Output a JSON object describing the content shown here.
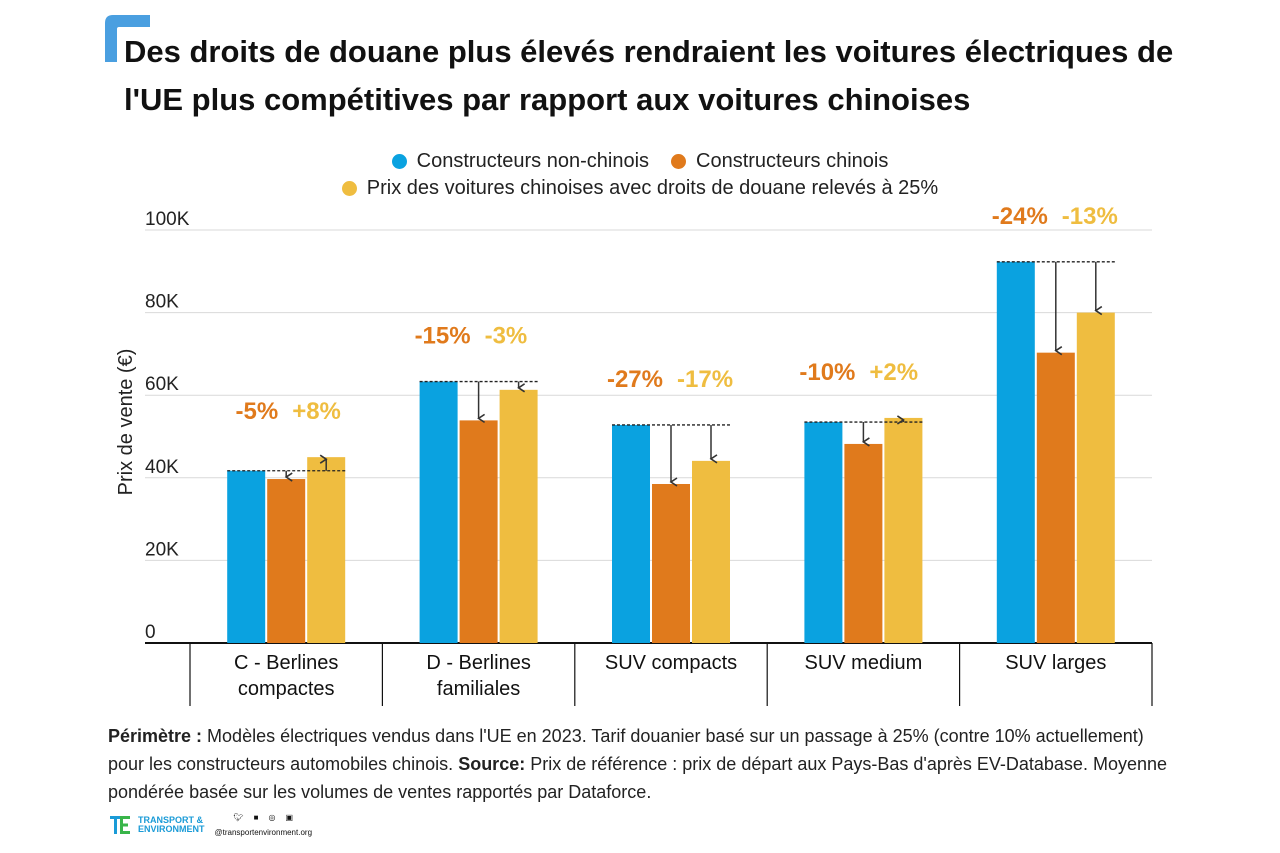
{
  "title": "Des droits de douane plus élevés rendraient les voitures électriques de l'UE plus compétitives par rapport aux voitures chinoises",
  "colors": {
    "non_chinese": "#0aa2e0",
    "chinese": "#e07a1c",
    "tariff": "#efbd40",
    "accent_corner": "#4a9fe0"
  },
  "legend": {
    "non_chinese": "Constructeurs non-chinois",
    "chinese": "Constructeurs chinois",
    "tariff": "Prix des voitures chinoises avec droits de douane relevés à 25%"
  },
  "chart_data": {
    "type": "bar",
    "ylabel": "Prix de vente (€)",
    "ylim": [
      0,
      100000
    ],
    "yticks": [
      {
        "value": 0,
        "label": "0"
      },
      {
        "value": 20000,
        "label": "20K"
      },
      {
        "value": 40000,
        "label": "40K"
      },
      {
        "value": 60000,
        "label": "60K"
      },
      {
        "value": 80000,
        "label": "80K"
      },
      {
        "value": 100000,
        "label": "100K"
      }
    ],
    "grid": true,
    "categories": [
      [
        "C - Berlines",
        "compactes"
      ],
      [
        "D - Berlines",
        "familiales"
      ],
      [
        "SUV compacts"
      ],
      [
        "SUV medium"
      ],
      [
        "SUV larges"
      ]
    ],
    "series": [
      {
        "name": "Constructeurs non-chinois",
        "key": "non_chinese",
        "values": [
          41700,
          63300,
          52800,
          53500,
          92300
        ]
      },
      {
        "name": "Constructeurs chinois",
        "key": "chinese",
        "values": [
          39700,
          53900,
          38500,
          48200,
          70300
        ]
      },
      {
        "name": "Prix des voitures chinoises avec droits de douane relevés à 25%",
        "key": "tariff",
        "values": [
          45000,
          61300,
          44100,
          54500,
          80000
        ]
      }
    ],
    "annotations": [
      {
        "chinese": "-5%",
        "tariff": "+8%"
      },
      {
        "chinese": "-15%",
        "tariff": "-3%"
      },
      {
        "chinese": "-27%",
        "tariff": "-17%"
      },
      {
        "chinese": "-10%",
        "tariff": "+2%"
      },
      {
        "chinese": "-24%",
        "tariff": "-13%"
      }
    ]
  },
  "footnote": {
    "perimetre_label": "Périmètre :",
    "perimetre_text": " Modèles électriques vendus dans l'UE en 2023. Tarif douanier basé sur un passage à 25% (contre 10% actuellement) pour les constructeurs automobiles chinois. ",
    "source_label": "Source:",
    "source_text": " Prix de référence : prix de départ aux Pays-Bas d'après EV-Database. Moyenne pondérée basée sur les volumes de ventes rapportés par Dataforce."
  },
  "brand": {
    "line1": "TRANSPORT &",
    "line2": "ENVIRONMENT",
    "handle": "@transportenvironment.org",
    "social": [
      "twitter-icon",
      "facebook-icon",
      "instagram-icon",
      "linkedin-icon"
    ]
  }
}
